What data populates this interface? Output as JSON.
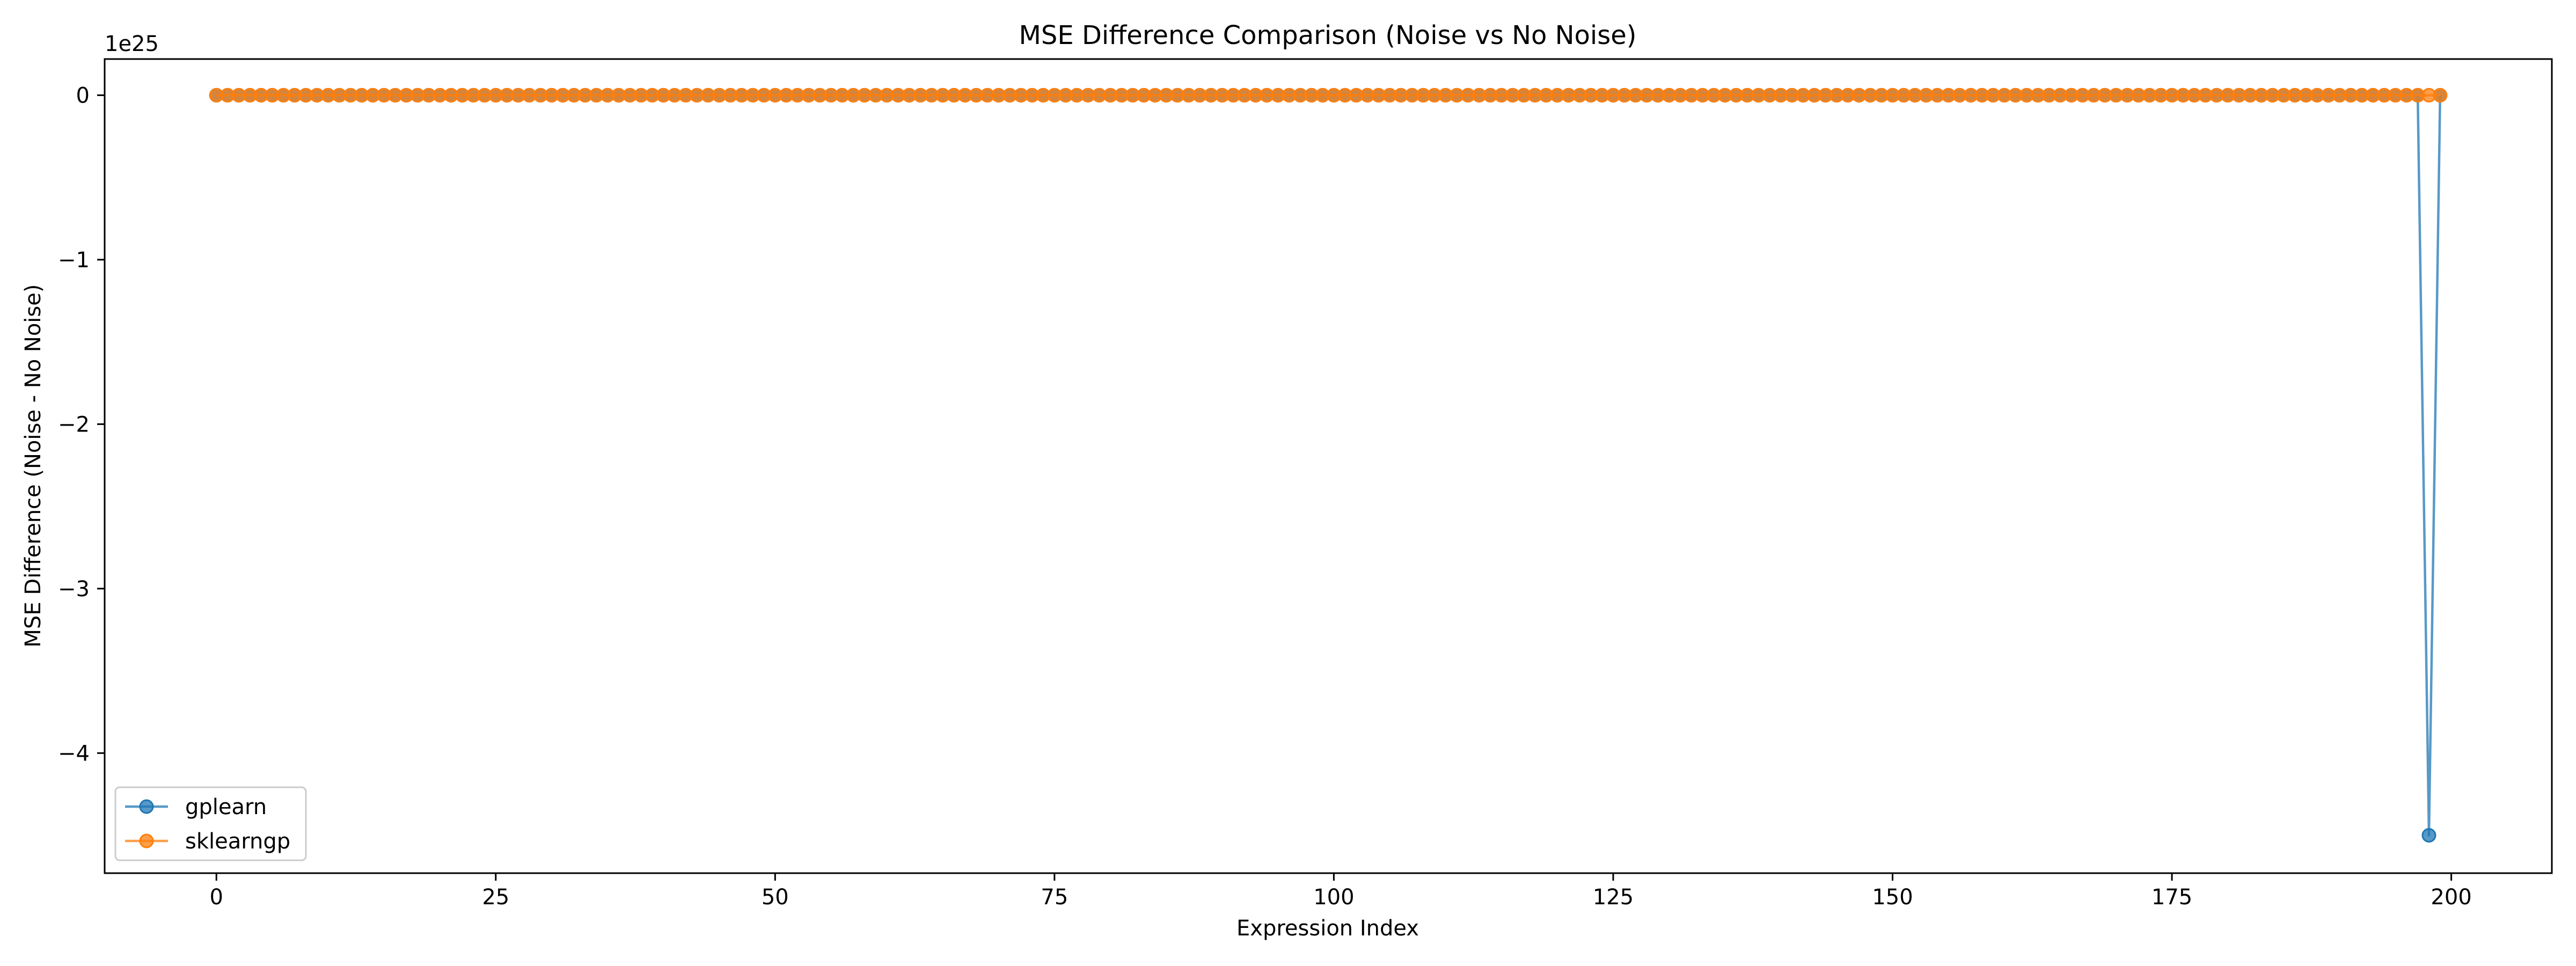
{
  "chart_data": {
    "type": "line",
    "title": "MSE Difference Comparison (Noise vs No Noise)",
    "xlabel": "Expression Index",
    "ylabel": "MSE Difference (Noise - No Noise)",
    "y_offset_label": "1e25",
    "xlim": [
      -10,
      209
    ],
    "ylim": [
      -4.73,
      0.22
    ],
    "y_unit_scale": 1e+25,
    "x_ticks": [
      0,
      25,
      50,
      75,
      100,
      125,
      150,
      175,
      200
    ],
    "x_tick_labels": [
      "0",
      "25",
      "50",
      "75",
      "100",
      "125",
      "150",
      "175",
      "200"
    ],
    "y_ticks": [
      0,
      -1,
      -2,
      -3,
      -4
    ],
    "y_tick_labels": [
      "0",
      "−1",
      "−2",
      "−3",
      "−4"
    ],
    "grid": false,
    "legend_position": "lower-left",
    "series": [
      {
        "name": "gplearn",
        "color": "#1f77b4",
        "marker": "circle",
        "x_start": 0,
        "x_end": 199,
        "default_value": 0,
        "overrides": [
          {
            "x": 198,
            "value": -4.5
          }
        ]
      },
      {
        "name": "sklearngp",
        "color": "#ff7f0e",
        "marker": "circle",
        "x_start": 0,
        "x_end": 199,
        "default_value": 0,
        "overrides": []
      }
    ]
  }
}
